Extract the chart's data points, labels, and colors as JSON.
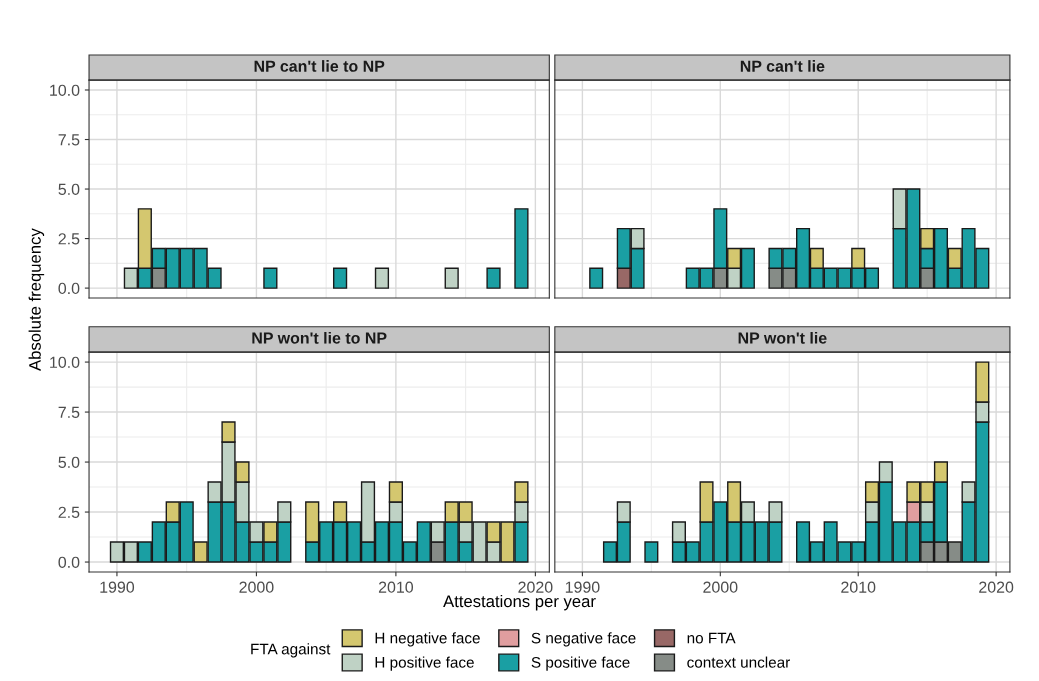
{
  "chart_data": [
    {
      "type": "bar",
      "stacked": true,
      "title": "NP can't lie to NP",
      "ylabel": "Absolute frequency",
      "legend": "bottom",
      "legend_title": "FTA against",
      "grid": true,
      "tick_labels": "y",
      "x": [
        1991,
        1992,
        1993,
        1994,
        1995,
        1996,
        1997,
        2001,
        2006,
        2009,
        2014,
        2017,
        2019
      ],
      "xlim": [
        1988,
        2021
      ],
      "xticks": [
        1990,
        2000,
        2010,
        2020
      ],
      "ylim": [
        -0.5,
        10.5
      ],
      "yticks": [
        {
          "value": 0,
          "label": "0.0"
        },
        {
          "value": 2.5,
          "label": "2.5"
        },
        {
          "value": 5,
          "label": "5.0"
        },
        {
          "value": 7.5,
          "label": "7.5"
        },
        {
          "value": 10,
          "label": "10.0"
        }
      ],
      "series": [
        {
          "name": "context unclear",
          "color": "#868c87",
          "values": [
            null,
            null,
            1,
            null,
            null,
            null,
            null,
            null,
            null,
            null,
            null,
            null,
            null
          ]
        },
        {
          "name": "no FTA",
          "color": "#986866",
          "values": [
            null,
            null,
            null,
            null,
            null,
            null,
            null,
            null,
            null,
            null,
            null,
            null,
            null
          ]
        },
        {
          "name": "S positive face",
          "color": "#1a9fa3",
          "values": [
            null,
            1,
            1,
            2,
            2,
            2,
            1,
            1,
            1,
            null,
            null,
            1,
            4
          ]
        },
        {
          "name": "S negative face",
          "color": "#e09e9f",
          "values": [
            null,
            null,
            null,
            null,
            null,
            null,
            null,
            null,
            null,
            null,
            null,
            null,
            null
          ]
        },
        {
          "name": "H positive face",
          "color": "#bfd2c5",
          "values": [
            1,
            null,
            null,
            null,
            null,
            null,
            null,
            null,
            null,
            1,
            1,
            null,
            null
          ]
        },
        {
          "name": "H negative face",
          "color": "#d4c76f",
          "values": [
            null,
            3,
            null,
            null,
            null,
            null,
            null,
            null,
            null,
            null,
            null,
            null,
            null
          ]
        }
      ]
    },
    {
      "type": "bar",
      "stacked": true,
      "title": "NP can't lie",
      "grid": true,
      "tick_labels": false,
      "x": [
        1991,
        1993,
        1994,
        1998,
        1999,
        2000,
        2001,
        2002,
        2004,
        2005,
        2006,
        2007,
        2008,
        2009,
        2010,
        2011,
        2013,
        2014,
        2015,
        2016,
        2017,
        2018,
        2019
      ],
      "xlim": [
        1988,
        2021
      ],
      "xticks": [
        1990,
        2000,
        2010,
        2020
      ],
      "ylim": [
        -0.5,
        10.5
      ],
      "yticks": [
        0,
        2.5,
        5,
        7.5,
        10
      ],
      "series": [
        {
          "color": "#868c87",
          "values": [
            null,
            null,
            null,
            null,
            null,
            1,
            null,
            null,
            1,
            1,
            null,
            null,
            null,
            null,
            null,
            null,
            null,
            null,
            1,
            null,
            null,
            null,
            null
          ]
        },
        {
          "color": "#986866",
          "values": [
            null,
            1,
            null,
            null,
            null,
            null,
            null,
            null,
            null,
            null,
            null,
            null,
            null,
            null,
            null,
            null,
            null,
            null,
            null,
            null,
            null,
            null,
            null
          ]
        },
        {
          "color": "#1a9fa3",
          "values": [
            1,
            2,
            2,
            1,
            1,
            3,
            null,
            2,
            1,
            1,
            3,
            1,
            1,
            1,
            1,
            1,
            3,
            5,
            1,
            3,
            1,
            3,
            2
          ]
        },
        {
          "color": "#bfd2c5",
          "values": [
            null,
            null,
            1,
            null,
            null,
            null,
            1,
            null,
            null,
            null,
            null,
            null,
            null,
            null,
            null,
            null,
            2,
            null,
            null,
            null,
            null,
            null,
            null
          ]
        },
        {
          "color": "#d4c76f",
          "values": [
            null,
            null,
            null,
            null,
            null,
            null,
            1,
            null,
            null,
            null,
            null,
            1,
            null,
            null,
            1,
            null,
            null,
            null,
            1,
            null,
            1,
            null,
            null
          ]
        }
      ]
    },
    {
      "type": "bar",
      "stacked": true,
      "title": "NP won't lie to NP",
      "xlabel": "Attestations per year",
      "grid": true,
      "x": [
        1990,
        1991,
        1992,
        1993,
        1994,
        1995,
        1996,
        1997,
        1998,
        1999,
        2000,
        2001,
        2002,
        2004,
        2005,
        2006,
        2007,
        2008,
        2009,
        2010,
        2011,
        2012,
        2013,
        2014,
        2015,
        2016,
        2017,
        2018,
        2019
      ],
      "xlim": [
        1988,
        2021
      ],
      "xticks": [
        1990,
        2000,
        2010,
        2020
      ],
      "ylim": [
        -0.5,
        10.5
      ],
      "yticks": [
        {
          "value": 0,
          "label": "0.0"
        },
        {
          "value": 2.5,
          "label": "2.5"
        },
        {
          "value": 5,
          "label": "5.0"
        },
        {
          "value": 7.5,
          "label": "7.5"
        },
        {
          "value": 10,
          "label": "10.0"
        }
      ],
      "series": [
        {
          "color": "#868c87",
          "values": [
            null,
            null,
            null,
            null,
            null,
            null,
            null,
            null,
            null,
            null,
            null,
            null,
            null,
            null,
            null,
            null,
            null,
            null,
            null,
            null,
            null,
            null,
            1,
            null,
            null,
            null,
            null,
            null,
            null
          ]
        },
        {
          "color": "#1a9fa3",
          "values": [
            null,
            null,
            1,
            2,
            2,
            3,
            null,
            3,
            3,
            2,
            1,
            1,
            2,
            1,
            2,
            2,
            2,
            1,
            2,
            2,
            1,
            2,
            null,
            2,
            1,
            null,
            null,
            null,
            2
          ]
        },
        {
          "color": "#bfd2c5",
          "values": [
            1,
            1,
            null,
            null,
            null,
            null,
            null,
            1,
            3,
            2,
            1,
            null,
            1,
            null,
            null,
            null,
            null,
            3,
            null,
            1,
            null,
            null,
            1,
            null,
            1,
            2,
            1,
            null,
            1
          ]
        },
        {
          "color": "#d4c76f",
          "values": [
            null,
            null,
            null,
            null,
            1,
            null,
            1,
            null,
            1,
            1,
            null,
            1,
            null,
            2,
            null,
            1,
            null,
            null,
            null,
            1,
            null,
            null,
            null,
            1,
            1,
            null,
            1,
            2,
            1
          ]
        }
      ]
    },
    {
      "type": "bar",
      "stacked": true,
      "title": "NP won't lie",
      "grid": true,
      "tick_labels": "x",
      "x": [
        1992,
        1993,
        1995,
        1997,
        1998,
        1999,
        2000,
        2001,
        2002,
        2003,
        2004,
        2006,
        2007,
        2008,
        2009,
        2010,
        2011,
        2012,
        2013,
        2014,
        2015,
        2016,
        2017,
        2018,
        2019
      ],
      "xlim": [
        1988,
        2021
      ],
      "xticks": [
        1990,
        2000,
        2010,
        2020
      ],
      "ylim": [
        -0.5,
        10.5
      ],
      "yticks": [
        0,
        2.5,
        5,
        7.5,
        10
      ],
      "series": [
        {
          "color": "#868c87",
          "values": [
            null,
            null,
            null,
            null,
            null,
            null,
            null,
            null,
            null,
            null,
            null,
            null,
            null,
            null,
            null,
            null,
            null,
            null,
            null,
            null,
            1,
            1,
            1,
            null,
            null
          ]
        },
        {
          "color": "#1a9fa3",
          "values": [
            1,
            2,
            1,
            1,
            1,
            2,
            3,
            2,
            2,
            2,
            2,
            2,
            1,
            2,
            1,
            1,
            2,
            4,
            2,
            2,
            1,
            3,
            null,
            3,
            7
          ]
        },
        {
          "color": "#e09e9f",
          "values": [
            null,
            null,
            null,
            null,
            null,
            null,
            null,
            null,
            null,
            null,
            null,
            null,
            null,
            null,
            null,
            null,
            null,
            null,
            null,
            1,
            null,
            null,
            null,
            null,
            null
          ]
        },
        {
          "color": "#bfd2c5",
          "values": [
            null,
            1,
            null,
            1,
            null,
            null,
            null,
            null,
            1,
            null,
            1,
            null,
            null,
            null,
            null,
            null,
            1,
            1,
            null,
            null,
            1,
            null,
            null,
            1,
            1
          ]
        },
        {
          "color": "#d4c76f",
          "values": [
            null,
            null,
            null,
            null,
            null,
            2,
            null,
            2,
            null,
            null,
            null,
            null,
            null,
            null,
            null,
            null,
            1,
            null,
            null,
            1,
            1,
            1,
            null,
            null,
            2
          ]
        }
      ]
    }
  ]
}
